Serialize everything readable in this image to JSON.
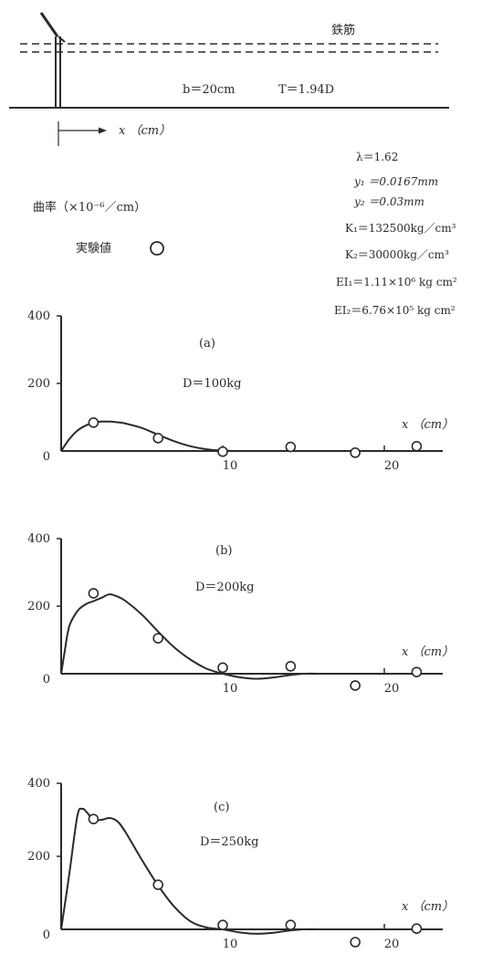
{
  "schematic": {
    "rebar_label": "鉄筋",
    "width_label": "b＝20cm",
    "t_label": "T＝1.94D",
    "x_axis_label": "x （cm）"
  },
  "parameters": [
    "λ＝1.62",
    "y₁ ＝0.0167mm",
    "y₂ ＝0.03mm",
    "K₁＝132500kg／cm³",
    "K₂＝30000kg／cm³",
    "EI₁＝1.11×10⁶ kg cm²",
    "EI₂＝6.76×10⁵ kg cm²"
  ],
  "legend": {
    "ylabel": "曲率（×10⁻⁶／cm）",
    "marker_label": "実験値"
  },
  "colors": {
    "ink": "#2b2b2b"
  },
  "chart_data": [
    {
      "type": "line",
      "panel_label": "(a)",
      "load_label": "D＝100kg",
      "xlabel": "x （cm）",
      "ylabel": "曲率（×10⁻⁶／cm）",
      "xlim": [
        0,
        24
      ],
      "ylim": [
        0,
        400
      ],
      "y_ticks": [
        0,
        200,
        400
      ],
      "x_ticks": [
        10,
        20
      ],
      "series": [
        {
          "x": [
            0,
            0.5,
            1,
            1.5,
            2,
            2.5,
            3,
            3.5,
            4,
            5,
            6,
            7,
            8,
            9,
            10,
            11,
            12,
            14,
            16,
            18,
            20,
            22,
            23
          ],
          "values": [
            0,
            35,
            60,
            75,
            84,
            87,
            87,
            85,
            81,
            68,
            48,
            29,
            14,
            5,
            1,
            0,
            0,
            0,
            0,
            0,
            0,
            0,
            0
          ]
        },
        {
          "name": "実験値",
          "marker": "circle",
          "x": [
            2,
            6,
            10,
            14.2,
            18.2,
            22
          ],
          "values": [
            84,
            38,
            -2,
            12,
            -5,
            14
          ]
        }
      ]
    },
    {
      "type": "line",
      "panel_label": "(b)",
      "load_label": "D＝200kg",
      "xlabel": "x （cm）",
      "ylabel": "曲率（×10⁻⁶／cm）",
      "xlim": [
        0,
        24
      ],
      "ylim": [
        0,
        400
      ],
      "y_ticks": [
        0,
        200,
        400
      ],
      "x_ticks": [
        10,
        20
      ],
      "series": [
        {
          "x": [
            0,
            0.2,
            0.5,
            1,
            1.5,
            2,
            2.5,
            3,
            3.5,
            4,
            5,
            6,
            7,
            8,
            9,
            10,
            11,
            12,
            13,
            14,
            15,
            16,
            18,
            20,
            22,
            23
          ],
          "values": [
            0,
            60,
            140,
            185,
            205,
            215,
            225,
            235,
            228,
            215,
            175,
            125,
            78,
            42,
            15,
            0,
            -10,
            -15,
            -12,
            -5,
            0,
            0,
            0,
            0,
            0,
            0
          ]
        },
        {
          "name": "実験値",
          "marker": "circle",
          "x": [
            2,
            6,
            10,
            14.2,
            18.2,
            22
          ],
          "values": [
            238,
            105,
            18,
            22,
            -35,
            5
          ]
        }
      ]
    },
    {
      "type": "line",
      "panel_label": "(c)",
      "load_label": "D＝250kg",
      "xlabel": "x （cm）",
      "ylabel": "曲率（×10⁻⁶／cm）",
      "xlim": [
        0,
        24
      ],
      "ylim": [
        0,
        400
      ],
      "y_ticks": [
        0,
        200,
        400
      ],
      "x_ticks": [
        10,
        20
      ],
      "series": [
        {
          "x": [
            0,
            0.5,
            1,
            1.3,
            1.6,
            2,
            2.5,
            3,
            3.5,
            4,
            5,
            6,
            7,
            8,
            9,
            10,
            11,
            12,
            13,
            14,
            15,
            16,
            18,
            20,
            22,
            23
          ],
          "values": [
            0,
            150,
            310,
            330,
            320,
            300,
            300,
            305,
            295,
            265,
            190,
            120,
            62,
            22,
            5,
            0,
            -8,
            -12,
            -10,
            -4,
            0,
            0,
            0,
            0,
            0,
            0
          ]
        },
        {
          "name": "実験値",
          "marker": "circle",
          "x": [
            2,
            6,
            10,
            14.2,
            18.2,
            22
          ],
          "values": [
            302,
            122,
            12,
            12,
            -35,
            2
          ]
        }
      ]
    }
  ]
}
